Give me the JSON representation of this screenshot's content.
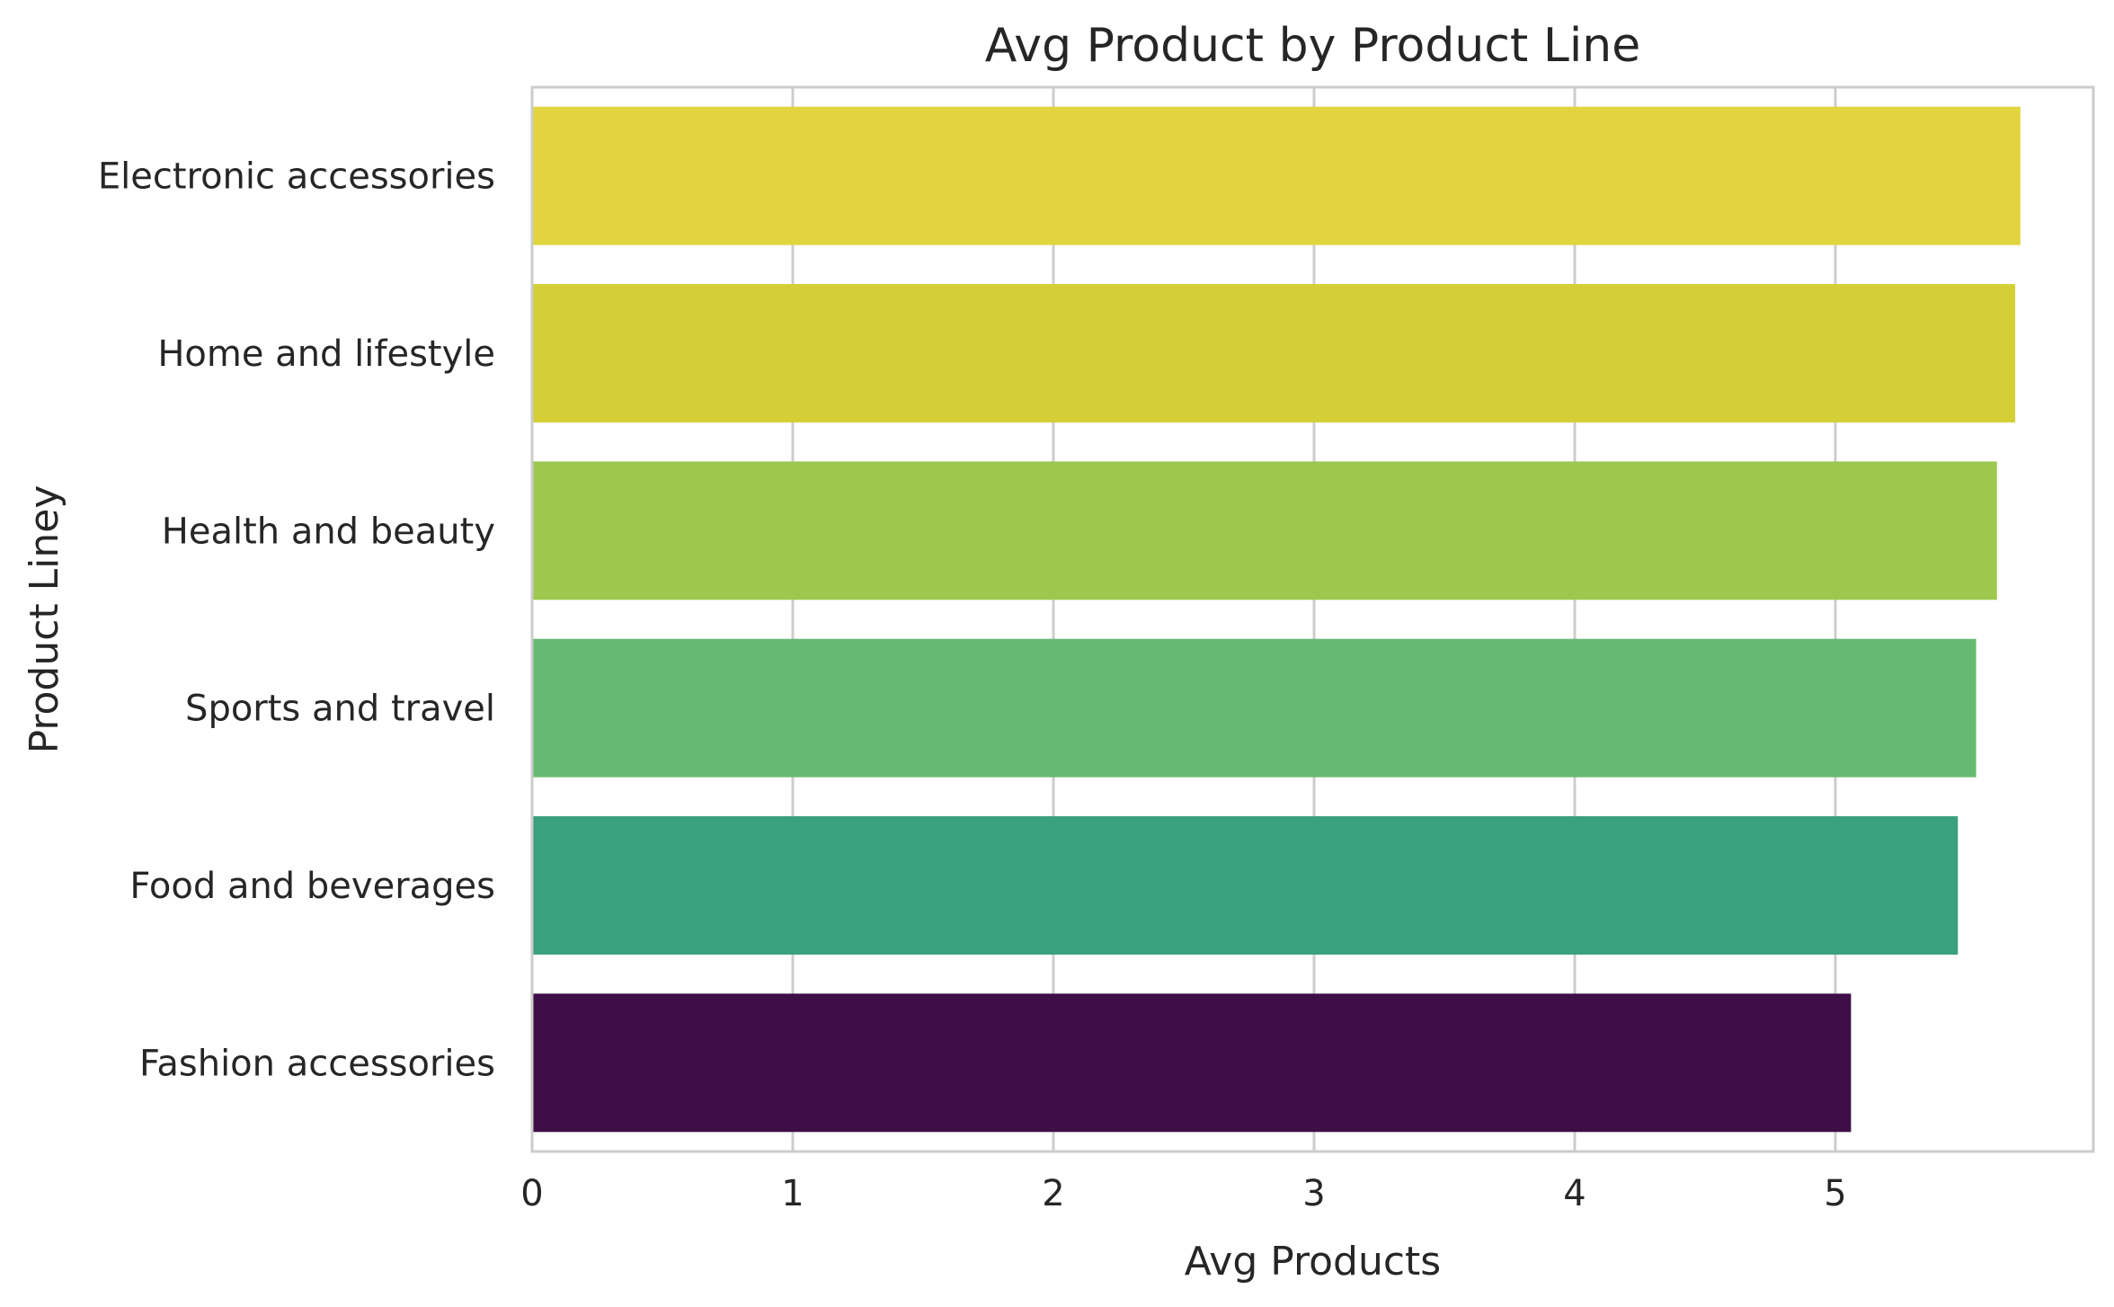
{
  "chart_data": {
    "type": "bar",
    "orientation": "horizontal",
    "title": "Avg Product by Product Line",
    "xlabel": "Avg Products",
    "ylabel": "Product Liney",
    "categories": [
      "Electronic accessories",
      "Home and lifestyle",
      "Health and beauty",
      "Sports and travel",
      "Food and beverages",
      "Fashion accessories"
    ],
    "values": [
      5.71,
      5.69,
      5.62,
      5.54,
      5.47,
      5.06
    ],
    "colors": [
      "#e2d43f",
      "#d4cf36",
      "#9cc84f",
      "#66b972",
      "#3aa07d",
      "#3e0e48"
    ],
    "xlim": [
      0,
      6
    ],
    "xticks": [
      "0",
      "1",
      "2",
      "3",
      "4",
      "5"
    ],
    "grid": "vertical",
    "grid_color": "#cccccc",
    "frame_color": "#cccccc",
    "text_color": "#262626",
    "legend": "none"
  }
}
